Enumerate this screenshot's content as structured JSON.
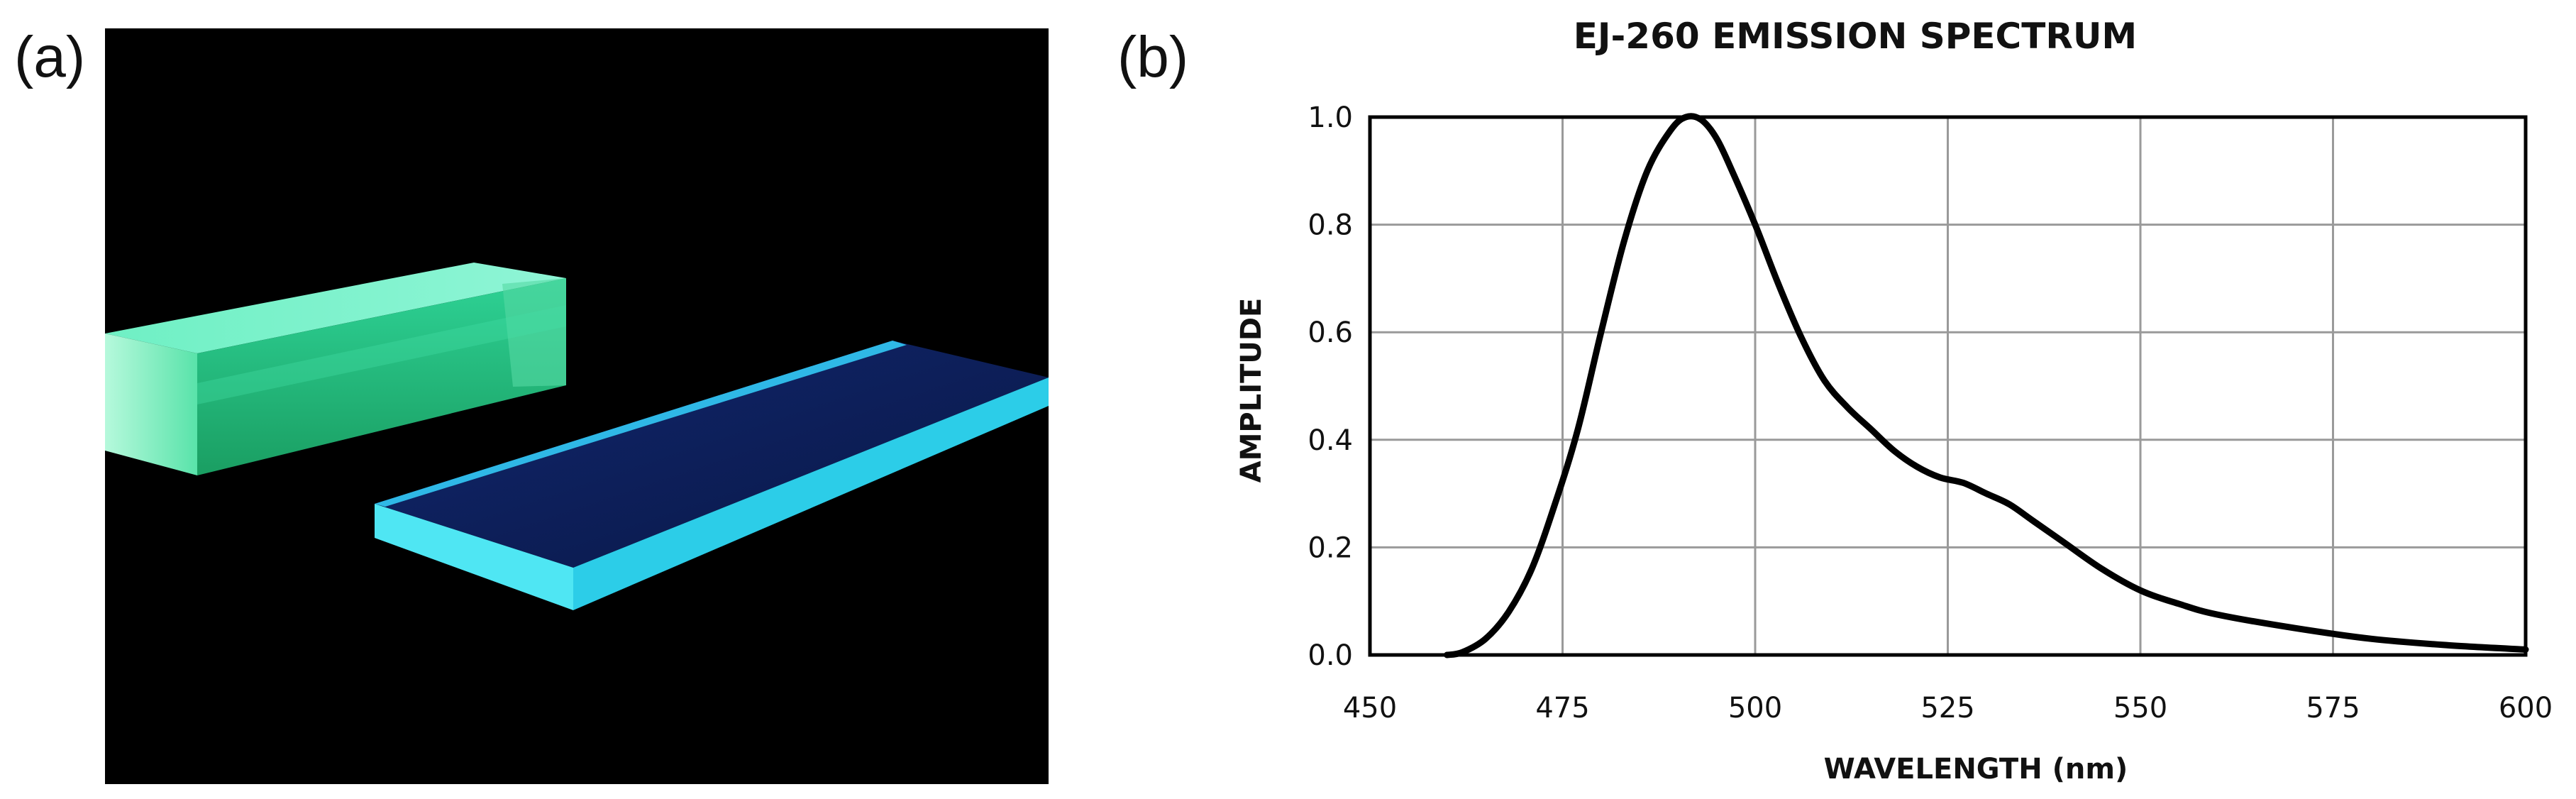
{
  "panels": {
    "a": "(a)",
    "b": "(b)"
  },
  "photo": {
    "subject": "two fluorescing plastic scintillator pieces on black background",
    "colors": {
      "background": "#000000",
      "bar": "#2fd79a",
      "slab_face": "#0c1f58",
      "slab_edge": "#35dcf0"
    }
  },
  "chart_data": {
    "type": "line",
    "title": "EJ-260 EMISSION SPECTRUM",
    "xlabel": "WAVELENGTH  (nm)",
    "ylabel": "AMPLITUDE",
    "xlim": [
      450,
      600
    ],
    "ylim": [
      0,
      1.0
    ],
    "xticks": [
      450,
      475,
      500,
      525,
      550,
      575,
      600
    ],
    "xtick_labels": [
      "450",
      "475",
      "500",
      "525",
      "550",
      "575",
      "600"
    ],
    "yticks": [
      0,
      0.2,
      0.4,
      0.6,
      0.8,
      1.0
    ],
    "ytick_labels": [
      "0.0",
      "0.2",
      "0.4",
      "0.6",
      "0.8",
      "1.0"
    ],
    "grid": true,
    "legend": "none",
    "series": [
      {
        "name": "EJ-260 emission",
        "color": "#000000",
        "x": [
          460,
          462,
          465,
          468,
          471,
          474,
          477,
          480,
          483,
          486,
          489,
          491,
          493,
          495,
          497,
          500,
          503,
          506,
          509,
          512,
          515,
          518,
          521,
          524,
          527,
          530,
          533,
          536,
          540,
          545,
          550,
          555,
          560,
          570,
          580,
          590,
          600
        ],
        "y": [
          0.0,
          0.005,
          0.03,
          0.08,
          0.16,
          0.28,
          0.42,
          0.6,
          0.77,
          0.9,
          0.975,
          1.0,
          0.995,
          0.96,
          0.9,
          0.8,
          0.69,
          0.59,
          0.51,
          0.46,
          0.42,
          0.38,
          0.35,
          0.33,
          0.32,
          0.3,
          0.28,
          0.25,
          0.21,
          0.16,
          0.12,
          0.095,
          0.075,
          0.05,
          0.03,
          0.018,
          0.01
        ]
      }
    ]
  }
}
